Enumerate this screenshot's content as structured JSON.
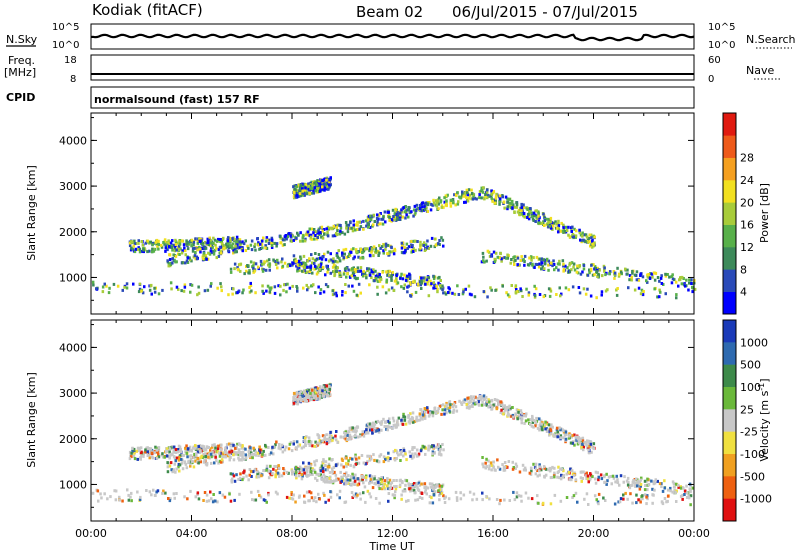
{
  "header": {
    "station": "Kodiak (fitACF)",
    "beam": "Beam 02",
    "date_range": "06/Jul/2015 - 07/Jul/2015"
  },
  "small_panels": {
    "nsky": {
      "left_label": "N.Sky",
      "left_ticks": [
        "10^5",
        "10^0"
      ],
      "right_ticks": [
        "10^5",
        "10^0"
      ],
      "right_label": "N.Search"
    },
    "freq": {
      "left_label_1": "Freq.",
      "left_label_2": "[MHz]",
      "left_ticks": [
        "18",
        "8"
      ],
      "right_ticks": [
        "60",
        "0"
      ],
      "right_label": "Nave"
    },
    "cpid": {
      "left_label": "CPID",
      "text": "normalsound (fast) 157 RF"
    }
  },
  "chart_data": [
    {
      "type": "heatmap",
      "name": "power",
      "ylabel": "Slant Range [km]",
      "ylim": [
        200,
        4600
      ],
      "yticks": [
        1000,
        2000,
        3000,
        4000
      ],
      "xlim": [
        0,
        24
      ],
      "colorbar": {
        "label": "Power [dB]",
        "ticks": [
          "4",
          "8",
          "12",
          "16",
          "20",
          "24",
          "28"
        ],
        "colors": [
          "#0000ff",
          "#2a4ab8",
          "#3d8a5a",
          "#58b04a",
          "#a8cc3a",
          "#f2e020",
          "#f5a020",
          "#ee5a1a",
          "#e01a10"
        ]
      }
    },
    {
      "type": "heatmap",
      "name": "velocity",
      "ylabel": "Slant Range [km]",
      "ylim": [
        200,
        4600
      ],
      "yticks": [
        1000,
        2000,
        3000,
        4000
      ],
      "xlim": [
        0,
        24
      ],
      "colorbar": {
        "label": "Velocity [m s^-1]",
        "ticks": [
          "1000",
          "500",
          "100",
          "25",
          "-25",
          "-100",
          "-500",
          "-1000"
        ],
        "colors": [
          "#1a3ab8",
          "#2e6ab0",
          "#3d8a4a",
          "#6ab83a",
          "#c8c8c8",
          "#f0e040",
          "#f0a020",
          "#ee6010",
          "#e01010"
        ]
      }
    }
  ],
  "xaxis": {
    "label": "Time UT",
    "ticks": [
      "00:00",
      "04:00",
      "08:00",
      "12:00",
      "16:00",
      "20:00",
      "00:00"
    ],
    "tick_hours": [
      0,
      4,
      8,
      12,
      16,
      20,
      24
    ]
  }
}
